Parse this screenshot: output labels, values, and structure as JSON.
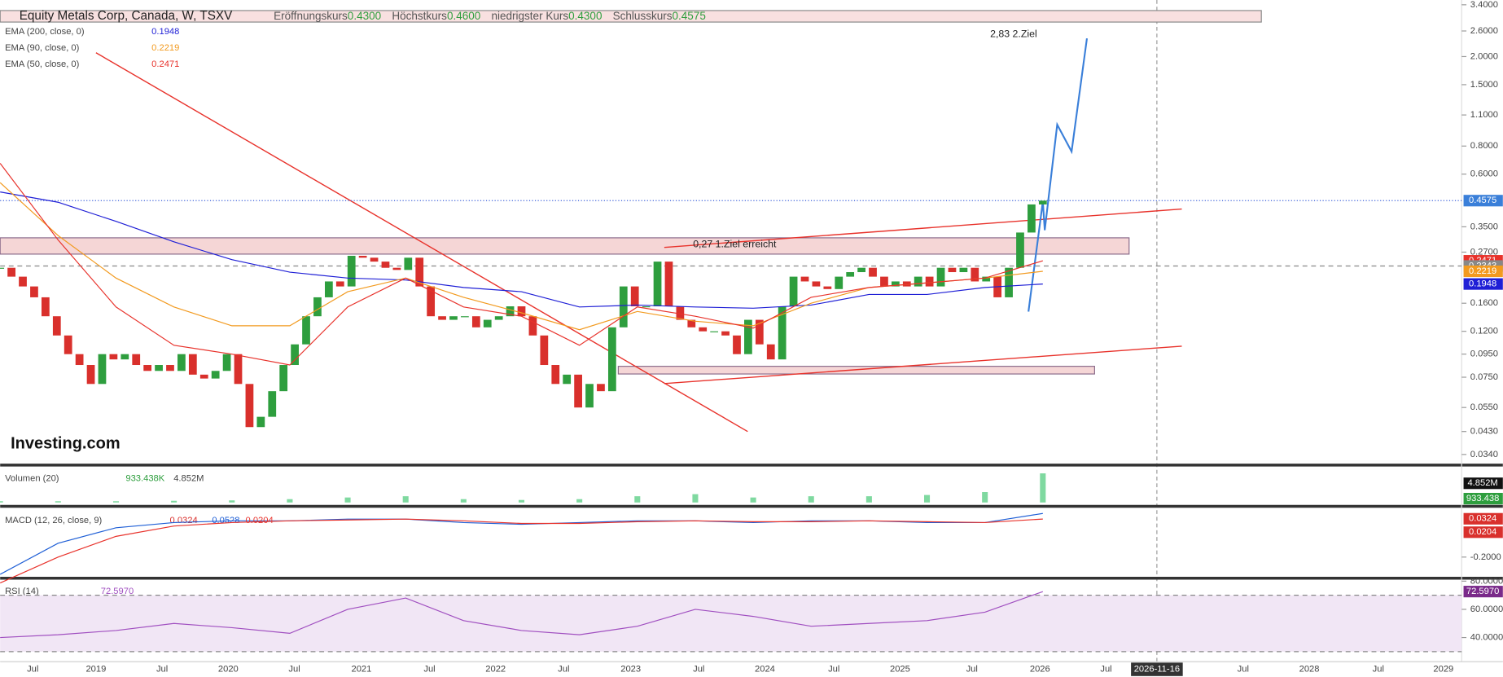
{
  "header": {
    "symbol": "Equity Metals Corp, Canada, W, TSXV",
    "open_label": "Eröffnungskurs",
    "open": "0.4300",
    "high_label": "Höchstkurs",
    "high": "0.4600",
    "low_label": "niedrigster Kurs",
    "low": "0.4300",
    "close_label": "Schlusskurs",
    "close": "0.4575"
  },
  "watermark": "Investing.com",
  "chart_data": {
    "type": "candlestick",
    "log_scale": true,
    "ylim": [
      0.0308,
      3.57
    ],
    "yticks": [
      {
        "value": 3.4,
        "label": "3.4000"
      },
      {
        "value": 2.6,
        "label": "2.6000"
      },
      {
        "value": 2,
        "label": "2.0000"
      },
      {
        "value": 1.5,
        "label": "1.5000"
      },
      {
        "value": 1.1,
        "label": "1.1000"
      },
      {
        "value": 0.8,
        "label": "0.8000"
      },
      {
        "value": 0.6,
        "label": "0.6000"
      },
      {
        "value": 0.35,
        "label": "0.3500"
      },
      {
        "value": 0.27,
        "label": "0.2700"
      },
      {
        "value": 0.16,
        "label": "0.1600"
      },
      {
        "value": 0.12,
        "label": "0.1200"
      },
      {
        "value": 0.095,
        "label": "0.0950"
      },
      {
        "value": 0.075,
        "label": "0.0750"
      },
      {
        "value": 0.055,
        "label": "0.0550"
      },
      {
        "value": 0.043,
        "label": "0.0430"
      },
      {
        "value": 0.034,
        "label": "0.0340"
      }
    ],
    "up_color": "#2e9e3e",
    "down_color": "#d9302c",
    "closes": [
      0.23,
      0.21,
      0.19,
      0.17,
      0.14,
      0.115,
      0.095,
      0.085,
      0.07,
      0.095,
      0.09,
      0.095,
      0.085,
      0.08,
      0.085,
      0.08,
      0.095,
      0.077,
      0.074,
      0.08,
      0.095,
      0.07,
      0.045,
      0.05,
      0.065,
      0.085,
      0.105,
      0.14,
      0.17,
      0.2,
      0.19,
      0.26,
      0.255,
      0.245,
      0.23,
      0.225,
      0.255,
      0.19,
      0.14,
      0.135,
      0.14,
      0.14,
      0.125,
      0.135,
      0.14,
      0.155,
      0.14,
      0.115,
      0.085,
      0.07,
      0.077,
      0.055,
      0.07,
      0.065,
      0.125,
      0.19,
      0.155,
      0.155,
      0.245,
      0.155,
      0.135,
      0.125,
      0.12,
      0.12,
      0.115,
      0.095,
      0.135,
      0.105,
      0.09,
      0.155,
      0.21,
      0.2,
      0.19,
      0.185,
      0.21,
      0.22,
      0.23,
      0.21,
      0.19,
      0.2,
      0.19,
      0.21,
      0.19,
      0.23,
      0.22,
      0.23,
      0.2,
      0.21,
      0.17,
      0.23,
      0.33,
      0.44,
      0.4575
    ],
    "ema": [
      {
        "name": "EMA (200, close, 0)",
        "color": "#1f1fd6",
        "value": 0.1948,
        "values": [
          0.5,
          0.45,
          0.37,
          0.3,
          0.25,
          0.22,
          0.207,
          0.203,
          0.188,
          0.18,
          0.154,
          0.157,
          0.154,
          0.152,
          0.157,
          0.175,
          0.175,
          0.188,
          0.1948
        ]
      },
      {
        "name": "EMA (90, close, 0)",
        "color": "#f29a1f",
        "value": 0.2219,
        "values": [
          0.55,
          0.32,
          0.207,
          0.154,
          0.127,
          0.127,
          0.18,
          0.207,
          0.17,
          0.145,
          0.122,
          0.147,
          0.133,
          0.127,
          0.16,
          0.188,
          0.197,
          0.207,
          0.2219
        ]
      },
      {
        "name": "EMA (50, close, 0)",
        "color": "#e8322b",
        "value": 0.2471,
        "values": [
          0.67,
          0.306,
          0.154,
          0.104,
          0.095,
          0.085,
          0.154,
          0.207,
          0.154,
          0.14,
          0.104,
          0.154,
          0.14,
          0.124,
          0.17,
          0.188,
          0.197,
          0.207,
          0.2471
        ]
      }
    ],
    "last_price": 0.4575,
    "prev_close": 0.2343,
    "annotations": [
      "2,83  2.Ziel",
      "0,27 1.Ziel erreicht"
    ],
    "x_labels": [
      "Jul",
      "2019",
      "Jul",
      "2020",
      "Jul",
      "2021",
      "Jul",
      "2022",
      "Jul",
      "2023",
      "Jul",
      "2024",
      "Jul",
      "2025",
      "Jul",
      "2026",
      "Jul",
      "Jul",
      "2028",
      "Jul",
      "2029"
    ],
    "crosshair_label": "2026-11-16"
  },
  "volume": {
    "name": "Volumen (20)",
    "label_1": "933.438K",
    "label_2": "4.852M",
    "badge_1": "4.852M",
    "badge_2": "933.438",
    "ylim": [
      0,
      8.3
    ],
    "color": "#7fd9a0",
    "values": [
      0.3,
      0.3,
      0.3,
      0.4,
      0.5,
      0.8,
      1.2,
      1.5,
      0.8,
      0.6,
      0.8,
      1.5,
      2,
      1.2,
      1.5,
      1.5,
      1.8,
      2.5,
      7
    ]
  },
  "macd": {
    "name": "MACD (12, 26, close, 9)",
    "histogram": 0.0324,
    "ylim": [
      -0.317,
      0.083
    ],
    "yticks": [
      {
        "value": -0.2,
        "label": "-0.2000"
      }
    ],
    "series": [
      {
        "name": "MACD",
        "color": "#1f5fd6",
        "values": [
          -0.3,
          -0.12,
          -0.03,
          0,
          0.01,
          0.01,
          0.02,
          0.02,
          0,
          -0.01,
          0,
          0.01,
          0.01,
          0,
          0.01,
          0.01,
          0,
          0,
          0.0528
        ]
      },
      {
        "name": "Signal",
        "color": "#e8322b",
        "values": [
          -0.35,
          -0.2,
          -0.08,
          -0.02,
          0,
          0.01,
          0.015,
          0.02,
          0.01,
          -0.005,
          -0.005,
          0.005,
          0.01,
          0.005,
          0.005,
          0.01,
          0.005,
          0,
          0.0204
        ]
      }
    ]
  },
  "rsi": {
    "name": "RSI (14)",
    "value_label": "72.5970",
    "ylim": [
      22.9,
      80.7
    ],
    "levels": [
      70,
      30
    ],
    "color": "#a04fc0",
    "yticks": [
      {
        "value": 80,
        "label": "80.0000"
      },
      {
        "value": 60,
        "label": "60.0000"
      },
      {
        "value": 40,
        "label": "40.0000"
      }
    ],
    "values": [
      40,
      42,
      45,
      50,
      47,
      43,
      60,
      68,
      52,
      45,
      42,
      48,
      60,
      55,
      48,
      50,
      52,
      58,
      72.597
    ]
  }
}
